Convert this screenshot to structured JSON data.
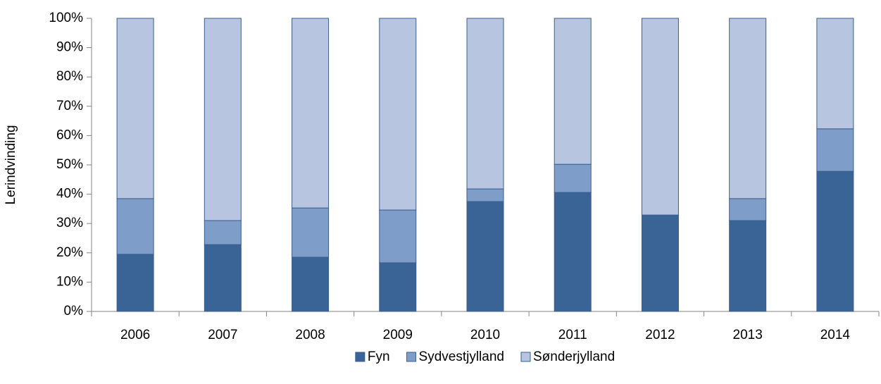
{
  "chart_data": {
    "type": "stacked_bar",
    "y_label": "Lerindvinding",
    "categories": [
      "2006",
      "2007",
      "2008",
      "2009",
      "2010",
      "2011",
      "2012",
      "2013",
      "2014"
    ],
    "series": [
      {
        "name": "Fyn",
        "color": "#3b6496",
        "values": [
          19.5,
          22.8,
          18.5,
          16.6,
          37.5,
          40.6,
          32.9,
          31,
          47.8
        ]
      },
      {
        "name": "Sydvestjylland",
        "color": "#7f9dc9",
        "values": [
          19,
          8.2,
          16.8,
          18,
          4.3,
          9.6,
          0,
          7.5,
          14.5
        ]
      },
      {
        "name": "Sønderjylland",
        "color": "#b7c5e0",
        "values": [
          61.5,
          69,
          64.7,
          65.4,
          58.2,
          49.8,
          67.1,
          61.5,
          37.7
        ]
      }
    ],
    "ylim": [
      0,
      100
    ],
    "yticks": [
      {
        "value": 0,
        "label": "0%"
      },
      {
        "value": 10,
        "label": "10%"
      },
      {
        "value": 20,
        "label": "20%"
      },
      {
        "value": 30,
        "label": "30%"
      },
      {
        "value": 40,
        "label": "40%"
      },
      {
        "value": 50,
        "label": "50%"
      },
      {
        "value": 60,
        "label": "60%"
      },
      {
        "value": 70,
        "label": "70%"
      },
      {
        "value": 80,
        "label": "80%"
      },
      {
        "value": 90,
        "label": "90%"
      },
      {
        "value": 100,
        "label": "100%"
      }
    ],
    "legend": "bottom"
  }
}
